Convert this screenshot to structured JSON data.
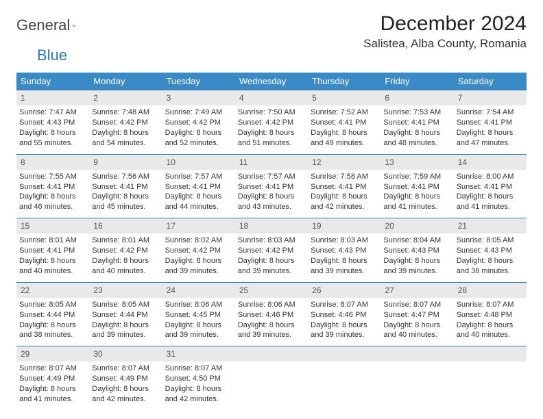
{
  "logo": {
    "text1": "General",
    "text2": "Blue"
  },
  "title": "December 2024",
  "location": "Salistea, Alba County, Romania",
  "colors": {
    "header_bg": "#3a8ac6",
    "daynum_bg": "#e9e9e9",
    "rule": "#2f79b9",
    "text": "#333333",
    "white": "#ffffff"
  },
  "daysOfWeek": [
    "Sunday",
    "Monday",
    "Tuesday",
    "Wednesday",
    "Thursday",
    "Friday",
    "Saturday"
  ],
  "weeks": [
    [
      {
        "n": "1",
        "sr": "7:47 AM",
        "ss": "4:43 PM",
        "dl": "8 hours and 55 minutes."
      },
      {
        "n": "2",
        "sr": "7:48 AM",
        "ss": "4:42 PM",
        "dl": "8 hours and 54 minutes."
      },
      {
        "n": "3",
        "sr": "7:49 AM",
        "ss": "4:42 PM",
        "dl": "8 hours and 52 minutes."
      },
      {
        "n": "4",
        "sr": "7:50 AM",
        "ss": "4:42 PM",
        "dl": "8 hours and 51 minutes."
      },
      {
        "n": "5",
        "sr": "7:52 AM",
        "ss": "4:41 PM",
        "dl": "8 hours and 49 minutes."
      },
      {
        "n": "6",
        "sr": "7:53 AM",
        "ss": "4:41 PM",
        "dl": "8 hours and 48 minutes."
      },
      {
        "n": "7",
        "sr": "7:54 AM",
        "ss": "4:41 PM",
        "dl": "8 hours and 47 minutes."
      }
    ],
    [
      {
        "n": "8",
        "sr": "7:55 AM",
        "ss": "4:41 PM",
        "dl": "8 hours and 46 minutes."
      },
      {
        "n": "9",
        "sr": "7:56 AM",
        "ss": "4:41 PM",
        "dl": "8 hours and 45 minutes."
      },
      {
        "n": "10",
        "sr": "7:57 AM",
        "ss": "4:41 PM",
        "dl": "8 hours and 44 minutes."
      },
      {
        "n": "11",
        "sr": "7:57 AM",
        "ss": "4:41 PM",
        "dl": "8 hours and 43 minutes."
      },
      {
        "n": "12",
        "sr": "7:58 AM",
        "ss": "4:41 PM",
        "dl": "8 hours and 42 minutes."
      },
      {
        "n": "13",
        "sr": "7:59 AM",
        "ss": "4:41 PM",
        "dl": "8 hours and 41 minutes."
      },
      {
        "n": "14",
        "sr": "8:00 AM",
        "ss": "4:41 PM",
        "dl": "8 hours and 41 minutes."
      }
    ],
    [
      {
        "n": "15",
        "sr": "8:01 AM",
        "ss": "4:41 PM",
        "dl": "8 hours and 40 minutes."
      },
      {
        "n": "16",
        "sr": "8:01 AM",
        "ss": "4:42 PM",
        "dl": "8 hours and 40 minutes."
      },
      {
        "n": "17",
        "sr": "8:02 AM",
        "ss": "4:42 PM",
        "dl": "8 hours and 39 minutes."
      },
      {
        "n": "18",
        "sr": "8:03 AM",
        "ss": "4:42 PM",
        "dl": "8 hours and 39 minutes."
      },
      {
        "n": "19",
        "sr": "8:03 AM",
        "ss": "4:43 PM",
        "dl": "8 hours and 39 minutes."
      },
      {
        "n": "20",
        "sr": "8:04 AM",
        "ss": "4:43 PM",
        "dl": "8 hours and 39 minutes."
      },
      {
        "n": "21",
        "sr": "8:05 AM",
        "ss": "4:43 PM",
        "dl": "8 hours and 38 minutes."
      }
    ],
    [
      {
        "n": "22",
        "sr": "8:05 AM",
        "ss": "4:44 PM",
        "dl": "8 hours and 38 minutes."
      },
      {
        "n": "23",
        "sr": "8:05 AM",
        "ss": "4:44 PM",
        "dl": "8 hours and 39 minutes."
      },
      {
        "n": "24",
        "sr": "8:06 AM",
        "ss": "4:45 PM",
        "dl": "8 hours and 39 minutes."
      },
      {
        "n": "25",
        "sr": "8:06 AM",
        "ss": "4:46 PM",
        "dl": "8 hours and 39 minutes."
      },
      {
        "n": "26",
        "sr": "8:07 AM",
        "ss": "4:46 PM",
        "dl": "8 hours and 39 minutes."
      },
      {
        "n": "27",
        "sr": "8:07 AM",
        "ss": "4:47 PM",
        "dl": "8 hours and 40 minutes."
      },
      {
        "n": "28",
        "sr": "8:07 AM",
        "ss": "4:48 PM",
        "dl": "8 hours and 40 minutes."
      }
    ],
    [
      {
        "n": "29",
        "sr": "8:07 AM",
        "ss": "4:49 PM",
        "dl": "8 hours and 41 minutes."
      },
      {
        "n": "30",
        "sr": "8:07 AM",
        "ss": "4:49 PM",
        "dl": "8 hours and 42 minutes."
      },
      {
        "n": "31",
        "sr": "8:07 AM",
        "ss": "4:50 PM",
        "dl": "8 hours and 42 minutes."
      },
      {
        "empty": true
      },
      {
        "empty": true
      },
      {
        "empty": true
      },
      {
        "empty": true
      }
    ]
  ],
  "labels": {
    "sunrise": "Sunrise: ",
    "sunset": "Sunset: ",
    "daylight": "Daylight: "
  }
}
